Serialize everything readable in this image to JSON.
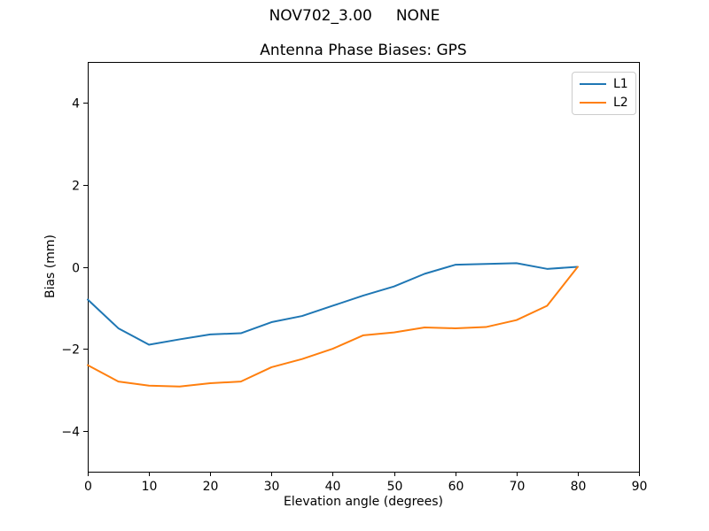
{
  "chart_data": {
    "type": "line",
    "suptitle": "NOV702_3.00     NONE",
    "title": "Antenna Phase Biases: GPS",
    "xlabel": "Elevation angle (degrees)",
    "ylabel": "Bias (mm)",
    "xlim": [
      0,
      90
    ],
    "ylim": [
      -5,
      5
    ],
    "x_ticks": [
      0,
      10,
      20,
      30,
      40,
      50,
      60,
      70,
      80,
      90
    ],
    "y_ticks": [
      -4,
      -2,
      0,
      2,
      4
    ],
    "y_tick_labels": [
      "−4",
      "−2",
      "0",
      "2",
      "4"
    ],
    "grid": false,
    "legend_position": "upper right",
    "background_color": "#ffffff",
    "spine_color": "#000000",
    "x": [
      0,
      5,
      10,
      15,
      20,
      25,
      30,
      35,
      40,
      45,
      50,
      55,
      60,
      65,
      70,
      75,
      80
    ],
    "series": [
      {
        "name": "L1",
        "color": "#1f77b4",
        "values": [
          -0.8,
          -1.5,
          -1.9,
          -1.77,
          -1.65,
          -1.62,
          -1.35,
          -1.2,
          -0.95,
          -0.7,
          -0.48,
          -0.17,
          0.05,
          0.07,
          0.09,
          -0.05,
          0.0
        ]
      },
      {
        "name": "L2",
        "color": "#ff7f0e",
        "values": [
          -2.4,
          -2.8,
          -2.9,
          -2.92,
          -2.84,
          -2.8,
          -2.45,
          -2.25,
          -2.0,
          -1.67,
          -1.6,
          -1.48,
          -1.5,
          -1.47,
          -1.3,
          -0.95,
          0.0
        ]
      }
    ]
  }
}
